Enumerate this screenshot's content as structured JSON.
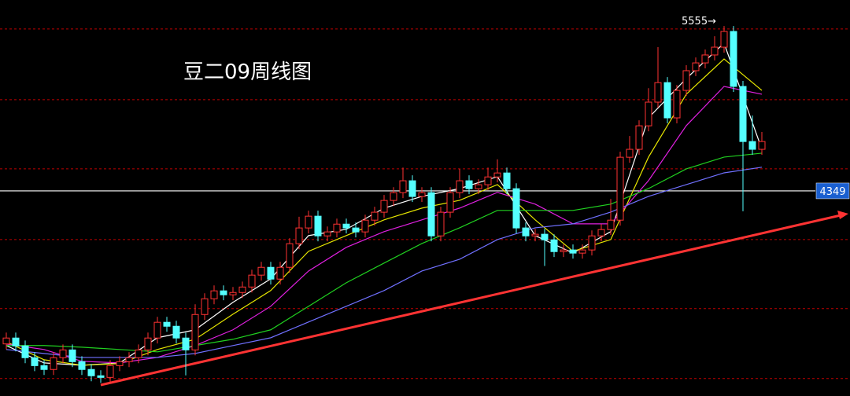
{
  "chart_data": {
    "type": "candlestick",
    "title": "豆二09周线图",
    "ylim": [
      2849,
      5745
    ],
    "gridlines": [
      5533,
      5016,
      4510,
      3993,
      3488,
      2977
    ],
    "grid_color": "#c00000",
    "up_color": "#ff3232",
    "down_color": "#54ffff",
    "open": [
      3230,
      3273,
      3215,
      3129,
      3071,
      3043,
      3129,
      3186,
      3100,
      3043,
      2997,
      2985,
      3071,
      3100,
      3129,
      3186,
      3273,
      3388,
      3359,
      3273,
      3186,
      3445,
      3560,
      3618,
      3589,
      3606,
      3646,
      3733,
      3790,
      3704,
      3790,
      3963,
      4078,
      4164,
      4020,
      4049,
      4106,
      4078,
      4049,
      4135,
      4193,
      4279,
      4336,
      4423,
      4308,
      4336,
      4020,
      4193,
      4336,
      4423,
      4365,
      4394,
      4451,
      4480,
      4365,
      4078,
      4020,
      4032,
      3991,
      3905,
      3917,
      3894,
      3917,
      4020,
      4066,
      4135,
      4595,
      4653,
      4825,
      4998,
      5141,
      4883,
      5084,
      5228,
      5285,
      5343,
      5400,
      5515,
      5113,
      4710,
      4653
    ],
    "high": [
      3313,
      3313,
      3255,
      3169,
      3111,
      3169,
      3226,
      3226,
      3140,
      3083,
      3037,
      3111,
      3140,
      3169,
      3226,
      3313,
      3428,
      3428,
      3399,
      3313,
      3520,
      3600,
      3658,
      3658,
      3646,
      3686,
      3773,
      3830,
      3830,
      3830,
      4003,
      4160,
      4204,
      4204,
      4089,
      4146,
      4146,
      4118,
      4175,
      4233,
      4319,
      4376,
      4520,
      4463,
      4376,
      4376,
      4233,
      4376,
      4510,
      4463,
      4434,
      4520,
      4580,
      4520,
      4405,
      4118,
      4072,
      4072,
      4031,
      3957,
      3957,
      3957,
      4060,
      4106,
      4290,
      4635,
      4750,
      4865,
      5100,
      5400,
      5181,
      5124,
      5268,
      5325,
      5383,
      5480,
      5555,
      5555,
      5153,
      4900,
      4780
    ],
    "low": [
      3190,
      3175,
      3089,
      3031,
      3003,
      3003,
      3089,
      3060,
      3003,
      2957,
      2945,
      2945,
      3031,
      3060,
      3089,
      3146,
      3233,
      3319,
      3233,
      3000,
      3146,
      3405,
      3520,
      3549,
      3549,
      3566,
      3606,
      3693,
      3664,
      3664,
      3750,
      3923,
      4038,
      3980,
      3980,
      4009,
      4038,
      4009,
      4009,
      4095,
      4153,
      4239,
      4296,
      4268,
      4268,
      3980,
      3980,
      4153,
      4296,
      4325,
      4325,
      4354,
      4411,
      4325,
      4038,
      3980,
      3980,
      3800,
      3865,
      3865,
      3854,
      3854,
      3877,
      3980,
      4026,
      4095,
      4555,
      4613,
      4785,
      4958,
      4843,
      4843,
      5044,
      5188,
      5245,
      5303,
      5360,
      5073,
      4200,
      4613,
      4613
    ],
    "close": [
      3273,
      3215,
      3129,
      3071,
      3043,
      3129,
      3186,
      3100,
      3043,
      2997,
      2985,
      3071,
      3100,
      3129,
      3186,
      3273,
      3388,
      3359,
      3273,
      3186,
      3445,
      3560,
      3618,
      3589,
      3606,
      3646,
      3733,
      3790,
      3704,
      3790,
      3963,
      4078,
      4164,
      4020,
      4049,
      4106,
      4078,
      4049,
      4135,
      4193,
      4279,
      4336,
      4423,
      4308,
      4336,
      4020,
      4193,
      4336,
      4423,
      4365,
      4394,
      4451,
      4480,
      4365,
      4078,
      4020,
      4032,
      3991,
      3905,
      3917,
      3894,
      3917,
      4020,
      4066,
      4135,
      4595,
      4653,
      4825,
      4998,
      5141,
      4883,
      5084,
      5228,
      5285,
      5343,
      5400,
      5515,
      5113,
      4710,
      4653,
      4710
    ],
    "moving_averages": [
      {
        "color": "#ffffff",
        "x": [
          0,
          4,
          8,
          12,
          16,
          20,
          24,
          28,
          32,
          36,
          40,
          44,
          48,
          52,
          56,
          60,
          64,
          68,
          72,
          76,
          80
        ],
        "values": [
          3218,
          3091,
          3074,
          3091,
          3275,
          3333,
          3534,
          3706,
          4022,
          4068,
          4223,
          4309,
          4366,
          4453,
          4022,
          3895,
          4051,
          4883,
          5171,
          5429,
          4654
        ]
      },
      {
        "color": "#e6e600",
        "x": [
          0,
          4,
          8,
          12,
          16,
          20,
          24,
          28,
          32,
          36,
          40,
          44,
          48,
          52,
          56,
          60,
          64,
          68,
          72,
          76,
          80
        ],
        "values": [
          3246,
          3114,
          3074,
          3086,
          3189,
          3264,
          3447,
          3620,
          3907,
          4022,
          4137,
          4223,
          4280,
          4395,
          4137,
          3907,
          3993,
          4596,
          5056,
          5314,
          5084
        ]
      },
      {
        "color": "#e020e0",
        "x": [
          0,
          4,
          8,
          12,
          16,
          20,
          24,
          28,
          32,
          36,
          40,
          44,
          48,
          52,
          56,
          60,
          64,
          68,
          72,
          76,
          80
        ],
        "values": [
          3229,
          3189,
          3103,
          3091,
          3131,
          3218,
          3333,
          3505,
          3763,
          3936,
          4051,
          4137,
          4223,
          4338,
          4252,
          4108,
          4108,
          4424,
          4826,
          5113,
          5056
        ]
      },
      {
        "color": "#20d020",
        "x": [
          0,
          4,
          8,
          12,
          16,
          20,
          24,
          28,
          32,
          36,
          40,
          44,
          48,
          52,
          56,
          60,
          64,
          68,
          72,
          76,
          80
        ],
        "values": [
          3218,
          3218,
          3206,
          3189,
          3172,
          3218,
          3264,
          3333,
          3505,
          3677,
          3821,
          3964,
          4079,
          4206,
          4206,
          4206,
          4252,
          4366,
          4510,
          4596,
          4625
        ]
      },
      {
        "color": "#7070ff",
        "x": [
          0,
          4,
          8,
          12,
          16,
          20,
          24,
          28,
          32,
          36,
          40,
          44,
          48,
          52,
          56,
          60,
          64,
          68,
          72,
          76,
          80
        ],
        "values": [
          3189,
          3160,
          3131,
          3131,
          3131,
          3160,
          3218,
          3275,
          3390,
          3505,
          3620,
          3763,
          3849,
          3993,
          4079,
          4108,
          4194,
          4309,
          4395,
          4481,
          4522
        ]
      }
    ],
    "price_line": 4349,
    "high_label": {
      "value": 5555,
      "label": "5555→"
    }
  }
}
